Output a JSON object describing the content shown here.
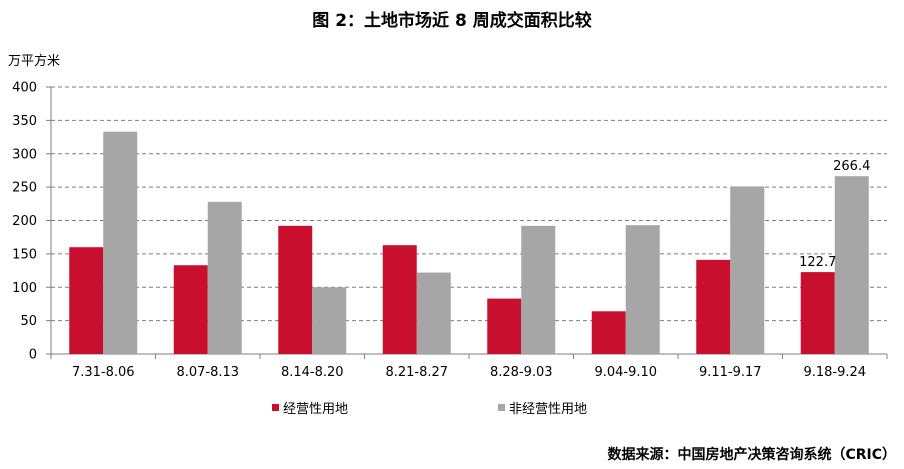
{
  "title": "图 2：土地市场近 8 周成交面积比较",
  "source": "数据来源：中国房地产决策咨询系统（CRIC）",
  "colors": {
    "series1": "#C8102E",
    "series2": "#A6A6A6",
    "grid": "#7F7F7F",
    "axis": "#7F7F7F"
  },
  "chart_data": {
    "type": "bar",
    "title": "图 2：土地市场近 8 周成交面积比较",
    "ylabel": "万平方米",
    "xlabel": "",
    "ylim": [
      0,
      400
    ],
    "yticks": [
      0,
      50,
      100,
      150,
      200,
      250,
      300,
      350,
      400
    ],
    "grid": true,
    "legend_position": "bottom",
    "categories": [
      "7.31-8.06",
      "8.07-8.13",
      "8.14-8.20",
      "8.21-8.27",
      "8.28-9.03",
      "9.04-9.10",
      "9.11-9.17",
      "9.18-9.24"
    ],
    "series": [
      {
        "name": "经营性用地",
        "values": [
          160,
          133,
          192,
          163,
          83,
          64,
          141,
          122.7
        ]
      },
      {
        "name": "非经营性用地",
        "values": [
          333,
          228,
          100,
          122,
          192,
          193,
          251,
          266.4
        ]
      }
    ],
    "data_labels": [
      {
        "series": 0,
        "index": 7,
        "text": "122.7"
      },
      {
        "series": 1,
        "index": 7,
        "text": "266.4"
      }
    ]
  }
}
